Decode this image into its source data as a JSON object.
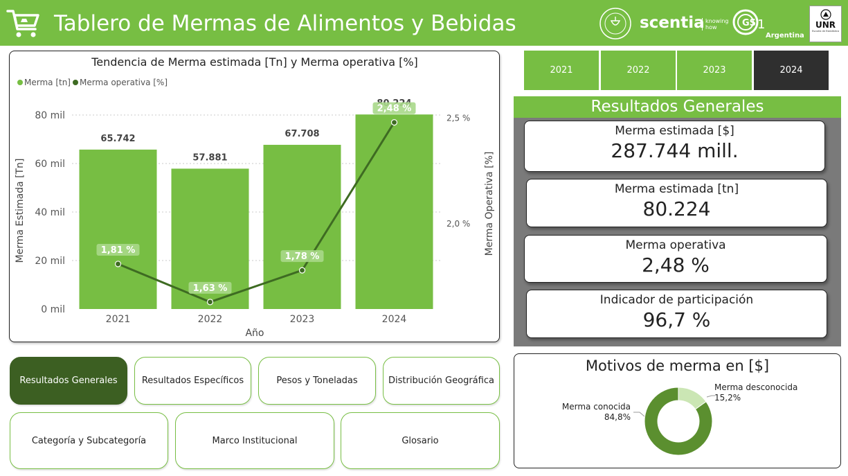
{
  "header": {
    "title": "Tablero de Mermas de Alimentos y Bebidas",
    "cart_icon": "shopping-cart-icon",
    "logos": {
      "scentia": "scentia",
      "scentia_tagline": "knowing how",
      "gs1_country": "Argentina",
      "unr": "UNR",
      "unr_caption": "Escuela de Estadística"
    }
  },
  "colors": {
    "brand_green": "#77be43",
    "dark_green": "#3c5f22",
    "line_green": "#3e6b22",
    "selected_year": "#2f2f2f",
    "panel_gray": "#7a7a7a"
  },
  "chart_data": {
    "type": "bar",
    "title": "Tendencia de Merma estimada [Tn] y Merma operativa [%]",
    "legend": [
      "Merma [tn]",
      "Merma operativa [%]"
    ],
    "legend_position": "top-left",
    "categories": [
      "2021",
      "2022",
      "2023",
      "2024"
    ],
    "series": [
      {
        "name": "Merma [tn]",
        "type": "bar",
        "axis": "left",
        "values": [
          65742,
          57881,
          67708,
          80224
        ],
        "labels": [
          "65.742",
          "57.881",
          "67.708",
          "80.224"
        ]
      },
      {
        "name": "Merma operativa [%]",
        "type": "line",
        "axis": "right",
        "values": [
          1.81,
          1.63,
          1.78,
          2.48
        ],
        "labels": [
          "1,81 %",
          "1,63 %",
          "1,78 %",
          "2,48 %"
        ]
      }
    ],
    "xlabel": "Año",
    "ylabel": "Merma Estimada [Tn]",
    "y2label": "Merma Operativa [%]",
    "ylim": [
      0,
      80000
    ],
    "yticks": [
      0,
      20000,
      40000,
      60000,
      80000
    ],
    "ytick_labels": [
      "0 mil",
      "20 mil",
      "40 mil",
      "60 mil",
      "80 mil"
    ],
    "y2lim": [
      1.6,
      2.5
    ],
    "y2ticks": [
      2.0,
      2.5
    ],
    "y2tick_labels": [
      "2,0 %",
      "2,5 %"
    ],
    "grid": true
  },
  "years": {
    "options": [
      "2021",
      "2022",
      "2023",
      "2024"
    ],
    "selected": "2024"
  },
  "results": {
    "title": "Resultados Generales",
    "kpis": [
      {
        "label": "Merma estimada [$]",
        "value": "287.744 mill."
      },
      {
        "label": "Merma estimada [tn]",
        "value": "80.224"
      },
      {
        "label": "Merma operativa",
        "value": "2,48 %"
      },
      {
        "label": "Indicador de participación",
        "value": "96,7 %"
      }
    ]
  },
  "donut": {
    "title": "Motivos de merma en [$]",
    "slices": [
      {
        "name": "Merma conocida",
        "value": 84.8,
        "label": "84,8%",
        "color": "#5b8f2f"
      },
      {
        "name": "Merma desconocida",
        "value": 15.2,
        "label": "15,2%",
        "color": "#cbe6b4"
      }
    ]
  },
  "nav": {
    "row1": [
      "Resultados Generales",
      "Resultados Específicos",
      "Pesos y Toneladas",
      "Distribución Geográfica"
    ],
    "row2": [
      "Categoría y Subcategoría",
      "Marco Institucional",
      "Glosario"
    ],
    "active": "Resultados Generales"
  }
}
